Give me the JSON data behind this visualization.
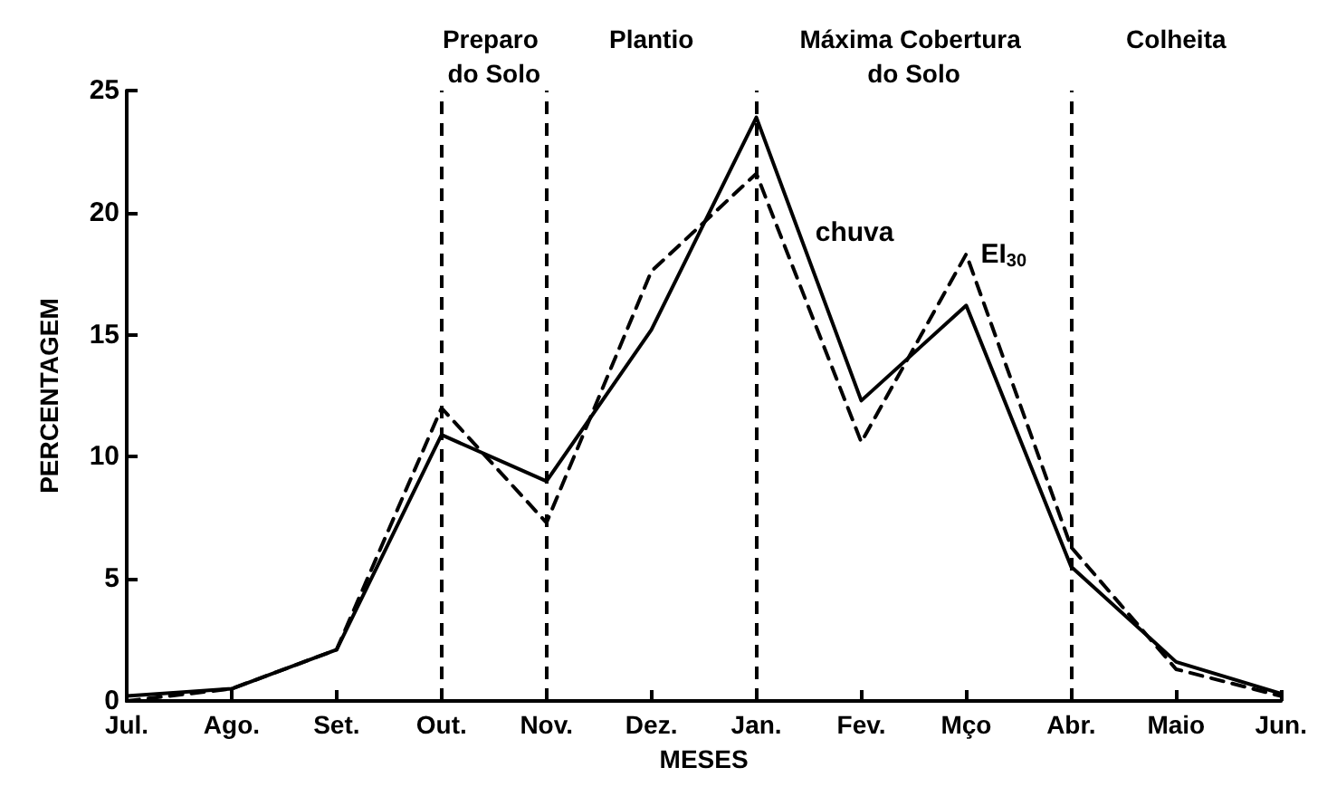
{
  "chart_data": {
    "type": "line",
    "xlabel": "MESES",
    "ylabel": "PERCENTAGEM",
    "categories": [
      "Jul.",
      "Ago.",
      "Set.",
      "Out.",
      "Nov.",
      "Dez.",
      "Jan.",
      "Fev.",
      "Mço",
      "Abr.",
      "Maio",
      "Jun."
    ],
    "series": [
      {
        "name": "chuva",
        "color": "#000000",
        "line_style": "solid",
        "values": [
          0.2,
          0.5,
          2.1,
          10.9,
          9.0,
          15.2,
          23.9,
          12.3,
          16.2,
          5.5,
          1.6,
          0.3
        ]
      },
      {
        "name": "EI$_{30}$",
        "color": "#000000",
        "line_style": "dashed",
        "values": [
          0,
          0.5,
          2.1,
          12.0,
          7.3,
          17.6,
          21.6,
          10.6,
          18.3,
          6.3,
          1.3,
          0.2
        ]
      }
    ],
    "ylim": [
      0,
      25
    ],
    "yticks": [
      0,
      5,
      10,
      15,
      20,
      25
    ],
    "grid": false,
    "legend": false,
    "marker": "none",
    "ref_lines": [
      {
        "axis": "x",
        "value": "Out.",
        "label": "Preparo do Solo",
        "color": "#000000",
        "line_style": "dashed"
      },
      {
        "axis": "x",
        "value": "Nov.",
        "label": "Plantio",
        "color": "#000000",
        "line_style": "dashed"
      },
      {
        "axis": "x",
        "value": "Jan.",
        "label": "Máxima Cobertura do Solo",
        "color": "#000000",
        "line_style": "dashed"
      },
      {
        "axis": "x",
        "value": "Abr.",
        "label": "Colheita",
        "color": "#000000",
        "line_style": "dashed"
      }
    ]
  }
}
